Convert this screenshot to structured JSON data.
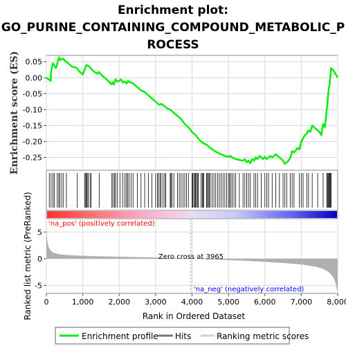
{
  "title_lines": [
    "Enrichment plot:",
    "GO_PURINE_CONTAINING_COMPOUND_METABOLIC_P",
    "ROCESS"
  ],
  "colors": {
    "enrichment_line": "#00ee00",
    "hits": "#000000",
    "metric_fill": "#b0b0b0",
    "pos_label": "#ff0000",
    "neg_label": "#0000ff",
    "grid": "#d8d8d8",
    "zero_cross_line": "#aaaaaa"
  },
  "chart_data": [
    {
      "type": "line",
      "panel": "enrichment",
      "ylabel": "Enrichment score (ES)",
      "xlim": [
        0,
        8000
      ],
      "ylim": [
        -0.29,
        0.07
      ],
      "yticks": [
        0.05,
        0.0,
        -0.05,
        -0.1,
        -0.15,
        -0.2,
        -0.25
      ],
      "ytick_labels": [
        "0.05",
        "0.00",
        "-0.05",
        "-0.10",
        "-0.15",
        "-0.20",
        "-0.25"
      ],
      "grid": true,
      "series": [
        {
          "name": "Enrichment profile",
          "x": [
            0,
            120,
            130,
            180,
            260,
            290,
            310,
            350,
            380,
            460,
            520,
            600,
            700,
            840,
            900,
            1000,
            1050,
            1100,
            1180,
            1250,
            1300,
            1400,
            1440,
            1500,
            1600,
            1700,
            1780,
            1820,
            1850,
            1900,
            1950,
            2000,
            2050,
            2100,
            2150,
            2200,
            2250,
            2300,
            2350,
            2400,
            2450,
            2500,
            2600,
            2700,
            2800,
            2900,
            3000,
            3100,
            3150,
            3200,
            3300,
            3400,
            3500,
            3600,
            3700,
            3800,
            3900,
            3965,
            4000,
            4100,
            4200,
            4300,
            4400,
            4500,
            4600,
            4700,
            4800,
            4900,
            5000,
            5050,
            5100,
            5200,
            5300,
            5400,
            5450,
            5500,
            5550,
            5600,
            5650,
            5700,
            5750,
            5800,
            5850,
            5900,
            5950,
            6000,
            6050,
            6100,
            6150,
            6200,
            6300,
            6400,
            6500,
            6550,
            6600,
            6650,
            6700,
            6750,
            6800,
            6900,
            6950,
            7000,
            7050,
            7100,
            7150,
            7200,
            7250,
            7300,
            7400,
            7500,
            7550,
            7600,
            7650,
            7700,
            7720,
            7740,
            7760,
            7780,
            7820,
            7900,
            8000
          ],
          "y": [
            0.0,
            -0.01,
            0.02,
            0.045,
            0.03,
            0.04,
            0.05,
            0.064,
            0.055,
            0.06,
            0.052,
            0.045,
            0.035,
            0.03,
            0.02,
            0.01,
            0.025,
            0.04,
            0.035,
            0.025,
            0.02,
            0.012,
            0.018,
            0.01,
            0.0,
            -0.01,
            -0.02,
            -0.015,
            -0.022,
            -0.005,
            -0.012,
            -0.01,
            -0.005,
            -0.015,
            -0.012,
            -0.018,
            -0.01,
            -0.015,
            -0.015,
            -0.02,
            -0.025,
            -0.03,
            -0.04,
            -0.045,
            -0.055,
            -0.065,
            -0.075,
            -0.085,
            -0.082,
            -0.085,
            -0.095,
            -0.1,
            -0.11,
            -0.12,
            -0.13,
            -0.145,
            -0.155,
            -0.165,
            -0.17,
            -0.18,
            -0.195,
            -0.205,
            -0.21,
            -0.22,
            -0.228,
            -0.235,
            -0.24,
            -0.245,
            -0.248,
            -0.245,
            -0.25,
            -0.255,
            -0.258,
            -0.26,
            -0.255,
            -0.265,
            -0.26,
            -0.268,
            -0.255,
            -0.26,
            -0.25,
            -0.255,
            -0.245,
            -0.25,
            -0.255,
            -0.248,
            -0.255,
            -0.25,
            -0.245,
            -0.25,
            -0.24,
            -0.25,
            -0.26,
            -0.27,
            -0.265,
            -0.26,
            -0.25,
            -0.23,
            -0.235,
            -0.22,
            -0.225,
            -0.2,
            -0.19,
            -0.18,
            -0.175,
            -0.165,
            -0.17,
            -0.15,
            -0.16,
            -0.17,
            -0.18,
            -0.145,
            -0.155,
            -0.1,
            -0.08,
            -0.05,
            -0.03,
            -0.02,
            0.03,
            0.02,
            0.0
          ]
        }
      ]
    },
    {
      "type": "bar",
      "panel": "hits",
      "name": "Hits",
      "x": [
        80,
        130,
        180,
        220,
        300,
        340,
        370,
        420,
        470,
        550,
        850,
        1050,
        1080,
        1100,
        1120,
        1150,
        1200,
        1230,
        1450,
        1800,
        1830,
        1870,
        1900,
        1950,
        2020,
        2100,
        2160,
        2200,
        2230,
        2270,
        2330,
        2380,
        2500,
        2600,
        2700,
        2800,
        2900,
        3000,
        3050,
        3080,
        3120,
        3150,
        3200,
        3250,
        3280,
        3400,
        3420,
        3450,
        3500,
        3600,
        3650,
        3700,
        3750,
        3800,
        3850,
        3900,
        4000,
        4020,
        4050,
        4080,
        4100,
        4120,
        4150,
        4170,
        4250,
        4280,
        4300,
        4320,
        4400,
        4420,
        4450,
        4470,
        4500,
        4550,
        4600,
        4650,
        4700,
        4750,
        4800,
        4850,
        4900,
        4950,
        5000,
        5030,
        5060,
        5100,
        5150,
        5200,
        5300,
        5400,
        5450,
        5500,
        5550,
        5600,
        5700,
        5750,
        5800,
        5900,
        6000,
        6050,
        6100,
        6200,
        6300,
        6400,
        6500,
        6550,
        6600,
        6700,
        6750,
        6800,
        6950,
        7000,
        7050,
        7150,
        7200,
        7300,
        7450,
        7600,
        7700,
        7720,
        7740,
        7760,
        7780,
        7800,
        7820
      ]
    },
    {
      "type": "area",
      "panel": "ranked_metric",
      "ylabel": "Ranked list metric (PreRanked)",
      "xlabel": "Rank in Ordered Dataset",
      "xlim": [
        0,
        8000
      ],
      "ylim": [
        -6.5,
        7.5
      ],
      "xticks": [
        0,
        1000,
        2000,
        3000,
        4000,
        5000,
        6000,
        7000,
        8000
      ],
      "xtick_labels": [
        "0",
        "1,000",
        "2,000",
        "3,000",
        "4,000",
        "5,000",
        "6,000",
        "7,000",
        "8,000"
      ],
      "yticks": [
        5,
        0,
        -5
      ],
      "ytick_labels": [
        "5",
        "0",
        "-5"
      ],
      "zero_cross": 3965,
      "x": [
        0,
        20,
        60,
        120,
        200,
        400,
        800,
        1500,
        2500,
        3500,
        3965,
        4500,
        5500,
        6500,
        7000,
        7400,
        7600,
        7750,
        7850,
        7900,
        7940,
        7970,
        8000
      ],
      "values": [
        6.0,
        3.5,
        2.2,
        1.5,
        1.1,
        0.8,
        0.6,
        0.45,
        0.3,
        0.15,
        0.0,
        -0.15,
        -0.4,
        -0.8,
        -1.1,
        -1.5,
        -1.9,
        -2.5,
        -3.2,
        -3.8,
        -4.5,
        -5.5,
        -6.3
      ]
    }
  ],
  "annotations": {
    "pos_label": "'na_pos' (positively correlated)",
    "neg_label": "'na_neg' (negatively correlated)",
    "zero_cross_label": "Zero cross at 3965"
  },
  "legend": {
    "items": [
      {
        "label": "Enrichment profile",
        "color": "#00ee00",
        "icon": "line-swatch"
      },
      {
        "label": "Hits",
        "color": "#000000",
        "icon": "line-swatch"
      },
      {
        "label": "Ranking metric scores",
        "color": "#d0d0d0",
        "icon": "line-swatch"
      }
    ]
  }
}
